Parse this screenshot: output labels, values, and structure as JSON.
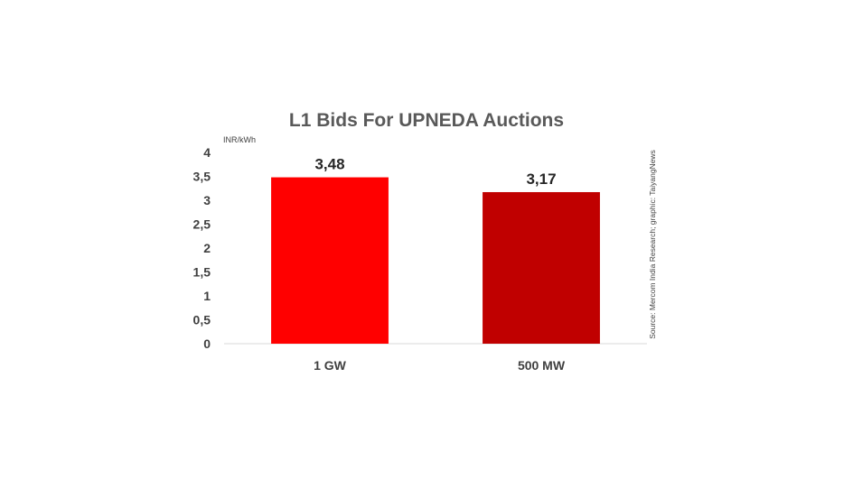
{
  "chart_data": {
    "type": "bar",
    "title": "L1 Bids For UPNEDA Auctions",
    "unit_label": "INR/kWh",
    "categories": [
      "1 GW",
      "500 MW"
    ],
    "values": [
      3.48,
      3.17
    ],
    "value_labels": [
      "3,48",
      "3,17"
    ],
    "bar_colors": [
      "#ff0000",
      "#c00000"
    ],
    "ylim": [
      0,
      4
    ],
    "y_ticks": [
      0,
      0.5,
      1,
      1.5,
      2,
      2.5,
      3,
      3.5,
      4
    ],
    "y_tick_labels": [
      "0",
      "0,5",
      "1",
      "1,5",
      "2",
      "2,5",
      "3",
      "3,5",
      "4"
    ],
    "grid": false,
    "legend": "none",
    "source": "Source: Mercom India Research; graphic: TaiyangNews"
  }
}
